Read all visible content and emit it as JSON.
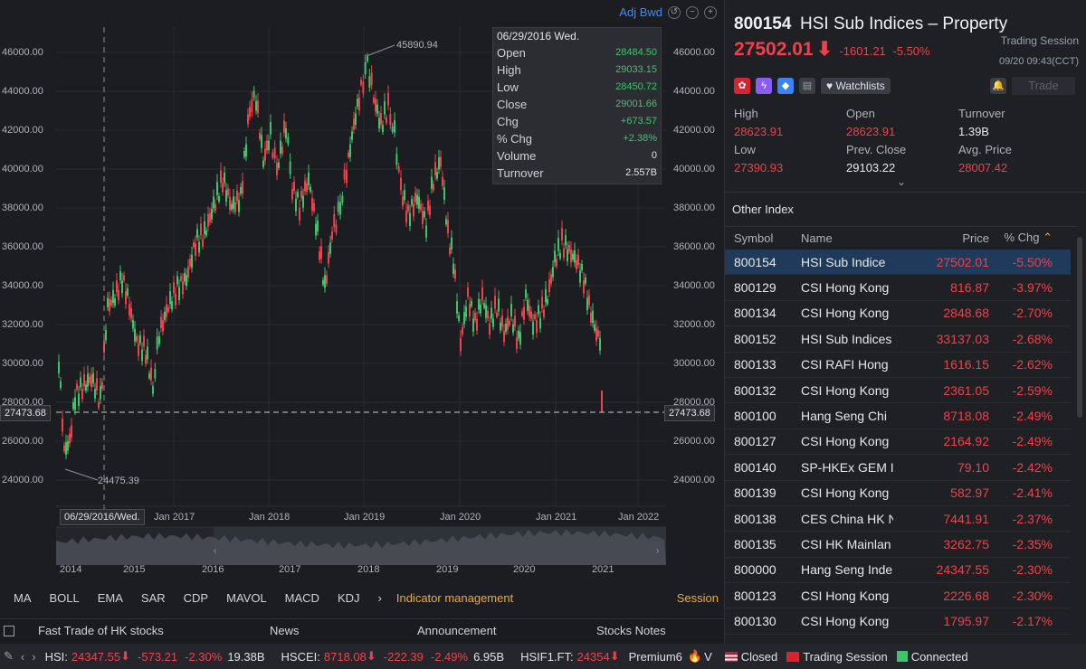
{
  "chart": {
    "adj_label": "Adj Bwd",
    "y_ticks": [
      "46000.00",
      "44000.00",
      "42000.00",
      "40000.00",
      "38000.00",
      "36000.00",
      "34000.00",
      "32000.00",
      "30000.00",
      "28000.00",
      "26000.00",
      "24000.00"
    ],
    "current_price_tag": "27473.68",
    "high_annotation": "45890.94",
    "low_annotation": "24475.39",
    "cursor_date": "06/29/2016/Wed.",
    "x_labels": [
      "Jan 2017",
      "Jan 2018",
      "Jan 2019",
      "Jan 2020",
      "Jan 2021",
      "Jan 2022"
    ],
    "overview_years": [
      "2014",
      "2015",
      "2016",
      "2017",
      "2018",
      "2019",
      "2020",
      "2021"
    ]
  },
  "tooltip": {
    "date": "06/29/2016 Wed.",
    "rows": [
      {
        "label": "Open",
        "value": "28484.50"
      },
      {
        "label": "High",
        "value": "29033.15"
      },
      {
        "label": "Low",
        "value": "28450.72"
      },
      {
        "label": "Close",
        "value": "29001.66"
      },
      {
        "label": "Chg",
        "value": "+673.57"
      },
      {
        "label": "% Chg",
        "value": "+2.38%"
      },
      {
        "label": "Volume",
        "value": "0"
      },
      {
        "label": "Turnover",
        "value": "2.557B"
      }
    ]
  },
  "indicators": {
    "items": [
      "MA",
      "BOLL",
      "EMA",
      "SAR",
      "CDP",
      "MAVOL",
      "MACD",
      "KDJ"
    ],
    "more": "›",
    "management": "Indicator management",
    "session": "Session"
  },
  "bottom_tabs": [
    "Fast Trade of HK stocks",
    "News",
    "Announcement",
    "Stocks Notes"
  ],
  "quote": {
    "code": "800154",
    "name": "HSI Sub Indices – Property",
    "price": "27502.01",
    "change": "-1601.21",
    "pct": "-5.50%",
    "session_label": "Trading Session",
    "time": "09/20 09:43(CCT)",
    "watchlists": "Watchlists",
    "trade": "Trade",
    "stats": [
      {
        "label": "High",
        "value": "28623.91",
        "color": "red"
      },
      {
        "label": "Open",
        "value": "28623.91",
        "color": "red"
      },
      {
        "label": "Turnover",
        "value": "1.39B",
        "color": "white"
      },
      {
        "label": "Low",
        "value": "27390.93",
        "color": "red"
      },
      {
        "label": "Prev. Close",
        "value": "29103.22",
        "color": "white"
      },
      {
        "label": "Avg. Price",
        "value": "28007.42",
        "color": "red"
      }
    ]
  },
  "other_index": {
    "title": "Other Index",
    "headers": {
      "symbol": "Symbol",
      "name": "Name",
      "price": "Price",
      "pct": "% Chg"
    },
    "rows": [
      {
        "symbol": "800154",
        "name": "HSI Sub Indice",
        "price": "27502.01",
        "pct": "-5.50%"
      },
      {
        "symbol": "800129",
        "name": "CSI Hong Kong",
        "price": "816.87",
        "pct": "-3.97%"
      },
      {
        "symbol": "800134",
        "name": "CSI Hong Kong",
        "price": "2848.68",
        "pct": "-2.70%"
      },
      {
        "symbol": "800152",
        "name": "HSI Sub Indices",
        "price": "33137.03",
        "pct": "-2.68%"
      },
      {
        "symbol": "800133",
        "name": "CSI RAFI Hong",
        "price": "1616.15",
        "pct": "-2.62%"
      },
      {
        "symbol": "800132",
        "name": "CSI Hong Kong",
        "price": "2361.05",
        "pct": "-2.59%"
      },
      {
        "symbol": "800100",
        "name": "Hang Seng Chi",
        "price": "8718.08",
        "pct": "-2.49%"
      },
      {
        "symbol": "800127",
        "name": "CSI Hong Kong",
        "price": "2164.92",
        "pct": "-2.49%"
      },
      {
        "symbol": "800140",
        "name": "SP-HKEx GEM I",
        "price": "79.10",
        "pct": "-2.42%"
      },
      {
        "symbol": "800139",
        "name": "CSI Hong Kong",
        "price": "582.97",
        "pct": "-2.41%"
      },
      {
        "symbol": "800138",
        "name": "CES China HK N",
        "price": "7441.91",
        "pct": "-2.37%"
      },
      {
        "symbol": "800135",
        "name": "CSI HK Mainlan",
        "price": "3262.75",
        "pct": "-2.35%"
      },
      {
        "symbol": "800000",
        "name": "Hang Seng Inde",
        "price": "24347.55",
        "pct": "-2.30%"
      },
      {
        "symbol": "800123",
        "name": "CSI Hong Kong",
        "price": "2226.68",
        "pct": "-2.30%"
      },
      {
        "symbol": "800130",
        "name": "CSI Hong Kong",
        "price": "1795.97",
        "pct": "-2.17%"
      }
    ]
  },
  "ticker": {
    "hsi_label": "HSI:",
    "hsi_price": "24347.55",
    "hsi_chg": "-573.21",
    "hsi_pct": "-2.30%",
    "hsi_turnover": "19.38B",
    "hscei_label": "HSCEI:",
    "hscei_price": "8718.08",
    "hscei_chg": "-222.39",
    "hscei_pct": "-2.49%",
    "hscei_turnover": "6.95B",
    "hsif_label": "HSIF1.FT:",
    "hsif_price": "24354",
    "premium": "Premium6",
    "v": "V",
    "closed": "Closed",
    "trading_session": "Trading Session",
    "connected": "Connected"
  }
}
